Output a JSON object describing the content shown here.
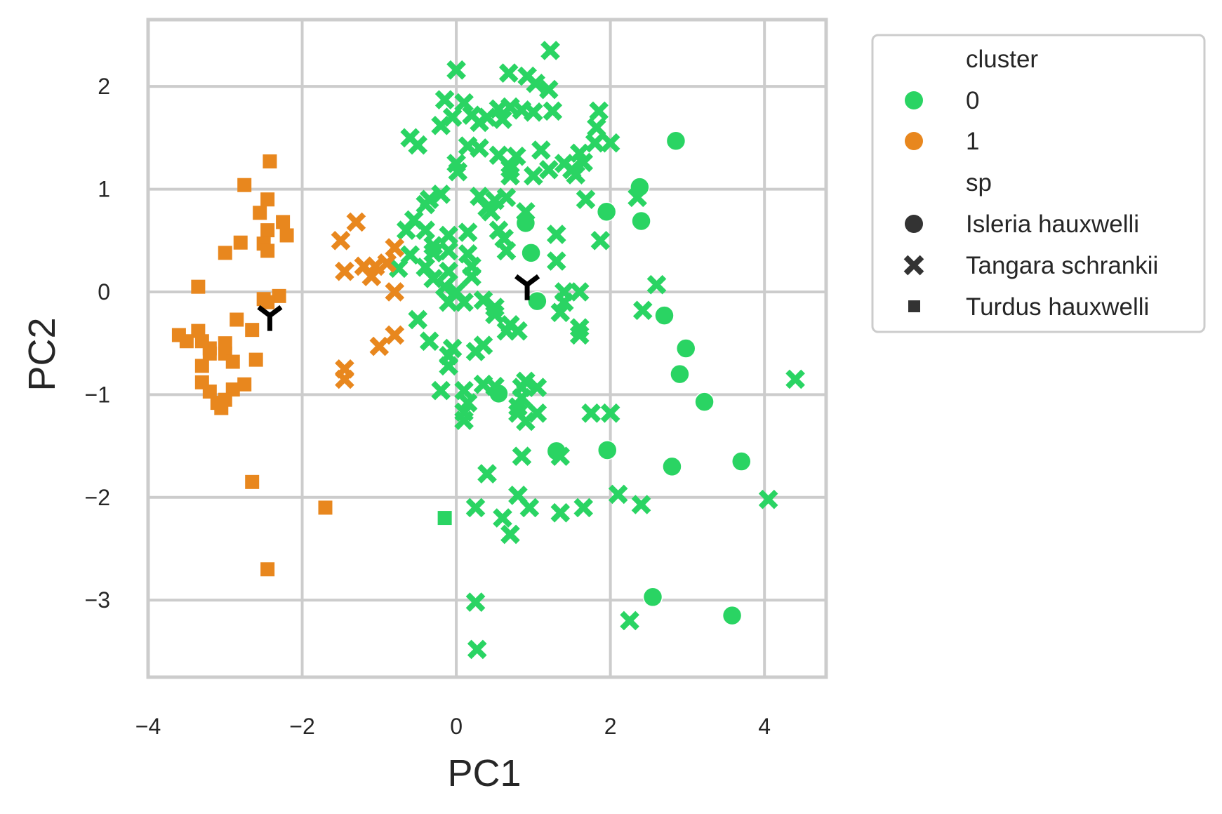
{
  "chart_data": {
    "type": "scatter",
    "xlabel": "PC1",
    "ylabel": "PC2",
    "xlim": [
      -4.0,
      4.8
    ],
    "ylim": [
      -3.75,
      2.65
    ],
    "x_ticks": [
      -4,
      -2,
      0,
      2,
      4
    ],
    "y_ticks": [
      -3,
      -2,
      -1,
      0,
      1,
      2
    ],
    "x_tick_labels": [
      "−4",
      "−2",
      "0",
      "2",
      "4"
    ],
    "y_tick_labels": [
      "−3",
      "−2",
      "−1",
      "0",
      "1",
      "2"
    ],
    "grid": true,
    "legend_placement": "outside upper right",
    "legend": {
      "hue_title": "cluster",
      "hue_entries": [
        {
          "label": "0",
          "color": "#2ad463"
        },
        {
          "label": "1",
          "color": "#e8871e"
        }
      ],
      "style_title": "sp",
      "style_entries": [
        {
          "label": "Isleria hauxwelli",
          "marker": "circle"
        },
        {
          "label": "Tangara schrankii",
          "marker": "x"
        },
        {
          "label": "Turdus hauxwelli",
          "marker": "square"
        }
      ]
    },
    "colors": {
      "cluster_0": "#2ad463",
      "cluster_1": "#e8871e",
      "centroid": "#000000",
      "grid": "#cccccc"
    },
    "series": [
      {
        "cluster": 0,
        "sp": "Isleria hauxwelli",
        "marker": "circle",
        "color": "#2ad463",
        "points": [
          [
            2.85,
            1.47
          ],
          [
            2.38,
            1.02
          ],
          [
            1.95,
            0.78
          ],
          [
            2.4,
            0.69
          ],
          [
            0.9,
            0.67
          ],
          [
            0.97,
            0.38
          ],
          [
            1.05,
            -0.09
          ],
          [
            2.7,
            -0.23
          ],
          [
            2.98,
            -0.55
          ],
          [
            2.9,
            -0.8
          ],
          [
            3.22,
            -1.07
          ],
          [
            0.55,
            -0.99
          ],
          [
            1.3,
            -1.55
          ],
          [
            1.96,
            -1.54
          ],
          [
            2.8,
            -1.7
          ],
          [
            3.7,
            -1.65
          ],
          [
            2.55,
            -2.97
          ],
          [
            3.58,
            -3.15
          ]
        ]
      },
      {
        "cluster": 0,
        "sp": "Tangara schrankii",
        "marker": "x",
        "color": "#2ad463",
        "points": [
          [
            1.22,
            2.35
          ],
          [
            0.0,
            2.16
          ],
          [
            0.68,
            2.13
          ],
          [
            0.92,
            2.1
          ],
          [
            1.03,
            2.03
          ],
          [
            1.2,
            1.97
          ],
          [
            -0.15,
            1.87
          ],
          [
            0.1,
            1.84
          ],
          [
            0.55,
            1.78
          ],
          [
            0.7,
            1.8
          ],
          [
            0.85,
            1.77
          ],
          [
            1.0,
            1.75
          ],
          [
            1.25,
            1.76
          ],
          [
            1.85,
            1.76
          ],
          [
            -0.05,
            1.7
          ],
          [
            0.2,
            1.72
          ],
          [
            0.4,
            1.7
          ],
          [
            0.6,
            1.68
          ],
          [
            -0.2,
            1.62
          ],
          [
            0.3,
            1.65
          ],
          [
            1.82,
            1.6
          ],
          [
            -0.6,
            1.5
          ],
          [
            1.8,
            1.45
          ],
          [
            2.0,
            1.45
          ],
          [
            -0.5,
            1.43
          ],
          [
            0.15,
            1.42
          ],
          [
            0.3,
            1.4
          ],
          [
            1.1,
            1.38
          ],
          [
            1.6,
            1.35
          ],
          [
            0.55,
            1.33
          ],
          [
            0.78,
            1.32
          ],
          [
            1.4,
            1.25
          ],
          [
            1.65,
            1.26
          ],
          [
            0.0,
            1.25
          ],
          [
            0.7,
            1.2
          ],
          [
            1.2,
            1.19
          ],
          [
            1.5,
            1.19
          ],
          [
            0.02,
            1.17
          ],
          [
            0.7,
            1.13
          ],
          [
            1.0,
            1.13
          ],
          [
            1.55,
            1.14
          ],
          [
            -0.2,
            0.95
          ],
          [
            -0.35,
            0.9
          ],
          [
            0.3,
            0.93
          ],
          [
            0.5,
            0.89
          ],
          [
            0.65,
            0.92
          ],
          [
            -0.4,
            0.85
          ],
          [
            0.4,
            0.82
          ],
          [
            1.68,
            0.9
          ],
          [
            2.35,
            0.92
          ],
          [
            -0.55,
            0.7
          ],
          [
            0.45,
            0.78
          ],
          [
            0.9,
            0.78
          ],
          [
            -0.65,
            0.6
          ],
          [
            -0.4,
            0.6
          ],
          [
            0.15,
            0.58
          ],
          [
            0.55,
            0.6
          ],
          [
            1.3,
            0.56
          ],
          [
            -0.1,
            0.55
          ],
          [
            -0.3,
            0.45
          ],
          [
            0.62,
            0.52
          ],
          [
            1.87,
            0.5
          ],
          [
            -0.6,
            0.36
          ],
          [
            -0.3,
            0.38
          ],
          [
            -0.1,
            0.4
          ],
          [
            0.15,
            0.37
          ],
          [
            0.65,
            0.4
          ],
          [
            1.3,
            0.3
          ],
          [
            -0.4,
            0.24
          ],
          [
            0.2,
            0.25
          ],
          [
            -0.75,
            0.23
          ],
          [
            -0.1,
            0.2
          ],
          [
            0.2,
            0.15
          ],
          [
            2.6,
            0.07
          ],
          [
            -0.3,
            0.13
          ],
          [
            -0.15,
            0.05
          ],
          [
            0.0,
            0.0
          ],
          [
            1.4,
            0.0
          ],
          [
            1.6,
            0.0
          ],
          [
            0.1,
            -0.1
          ],
          [
            0.35,
            -0.08
          ],
          [
            1.4,
            -0.1
          ],
          [
            -0.1,
            -0.1
          ],
          [
            0.5,
            -0.15
          ],
          [
            1.35,
            -0.2
          ],
          [
            0.5,
            -0.22
          ],
          [
            2.42,
            -0.18
          ],
          [
            -0.5,
            -0.27
          ],
          [
            0.7,
            -0.32
          ],
          [
            1.6,
            -0.35
          ],
          [
            -0.35,
            -0.48
          ],
          [
            0.65,
            -0.38
          ],
          [
            0.8,
            -0.38
          ],
          [
            1.6,
            -0.42
          ],
          [
            0.35,
            -0.52
          ],
          [
            -0.05,
            -0.55
          ],
          [
            0.25,
            -0.58
          ],
          [
            -0.1,
            -0.62
          ],
          [
            -0.1,
            -0.72
          ],
          [
            0.35,
            -0.9
          ],
          [
            0.9,
            -0.87
          ],
          [
            0.1,
            -0.96
          ],
          [
            0.85,
            -0.93
          ],
          [
            1.05,
            -0.93
          ],
          [
            -0.2,
            -0.96
          ],
          [
            0.5,
            -0.92
          ],
          [
            0.85,
            -1.03
          ],
          [
            0.15,
            -1.08
          ],
          [
            0.8,
            -1.12
          ],
          [
            0.1,
            -1.17
          ],
          [
            0.8,
            -1.18
          ],
          [
            1.05,
            -1.18
          ],
          [
            1.75,
            -1.18
          ],
          [
            2.0,
            -1.18
          ],
          [
            0.1,
            -1.25
          ],
          [
            0.9,
            -1.26
          ],
          [
            4.4,
            -0.85
          ],
          [
            0.85,
            -1.6
          ],
          [
            1.35,
            -1.6
          ],
          [
            0.4,
            -1.77
          ],
          [
            2.1,
            -1.97
          ],
          [
            0.8,
            -1.98
          ],
          [
            4.05,
            -2.02
          ],
          [
            0.25,
            -2.1
          ],
          [
            0.95,
            -2.1
          ],
          [
            1.65,
            -2.1
          ],
          [
            2.4,
            -2.07
          ],
          [
            0.6,
            -2.2
          ],
          [
            1.35,
            -2.15
          ],
          [
            0.7,
            -2.36
          ],
          [
            0.25,
            -3.02
          ],
          [
            2.25,
            -3.2
          ],
          [
            0.27,
            -3.48
          ]
        ]
      },
      {
        "cluster": 0,
        "sp": "Turdus hauxwelli",
        "marker": "square",
        "color": "#2ad463",
        "points": [
          [
            -0.15,
            -2.2
          ]
        ]
      },
      {
        "cluster": 1,
        "sp": "Tangara schrankii",
        "marker": "x",
        "color": "#e8871e",
        "points": [
          [
            -1.3,
            0.68
          ],
          [
            -1.5,
            0.5
          ],
          [
            -0.8,
            0.43
          ],
          [
            -1.45,
            0.2
          ],
          [
            -1.2,
            0.25
          ],
          [
            -1.05,
            0.25
          ],
          [
            -0.9,
            0.28
          ],
          [
            -1.1,
            0.15
          ],
          [
            -0.8,
            0.0
          ],
          [
            -0.8,
            -0.42
          ],
          [
            -1.0,
            -0.53
          ],
          [
            -1.45,
            -0.75
          ],
          [
            -1.45,
            -0.85
          ]
        ]
      },
      {
        "cluster": 1,
        "sp": "Turdus hauxwelli",
        "marker": "square",
        "color": "#e8871e",
        "points": [
          [
            -2.42,
            1.27
          ],
          [
            -2.75,
            1.04
          ],
          [
            -2.45,
            0.9
          ],
          [
            -2.55,
            0.77
          ],
          [
            -2.25,
            0.68
          ],
          [
            -2.45,
            0.6
          ],
          [
            -2.2,
            0.55
          ],
          [
            -2.8,
            0.48
          ],
          [
            -2.5,
            0.47
          ],
          [
            -2.45,
            0.4
          ],
          [
            -3.0,
            0.38
          ],
          [
            -3.35,
            0.05
          ],
          [
            -2.3,
            -0.04
          ],
          [
            -2.5,
            -0.07
          ],
          [
            -2.45,
            -0.1
          ],
          [
            -2.85,
            -0.27
          ],
          [
            -2.65,
            -0.37
          ],
          [
            -3.6,
            -0.42
          ],
          [
            -3.35,
            -0.38
          ],
          [
            -3.5,
            -0.48
          ],
          [
            -3.2,
            -0.55
          ],
          [
            -3.0,
            -0.5
          ],
          [
            -3.3,
            -0.48
          ],
          [
            -3.2,
            -0.6
          ],
          [
            -3.0,
            -0.6
          ],
          [
            -3.3,
            -0.72
          ],
          [
            -2.9,
            -0.68
          ],
          [
            -2.6,
            -0.66
          ],
          [
            -3.3,
            -0.88
          ],
          [
            -2.75,
            -0.9
          ],
          [
            -2.9,
            -0.95
          ],
          [
            -3.2,
            -0.97
          ],
          [
            -3.0,
            -1.05
          ],
          [
            -3.1,
            -1.08
          ],
          [
            -3.05,
            -1.13
          ],
          [
            -2.65,
            -1.85
          ],
          [
            -1.7,
            -2.1
          ],
          [
            -2.45,
            -2.7
          ]
        ]
      },
      {
        "cluster": null,
        "sp": "centroid",
        "marker": "tri_down",
        "color": "#000000",
        "points": [
          [
            0.92,
            0.07
          ],
          [
            -2.42,
            -0.23
          ]
        ]
      }
    ]
  }
}
